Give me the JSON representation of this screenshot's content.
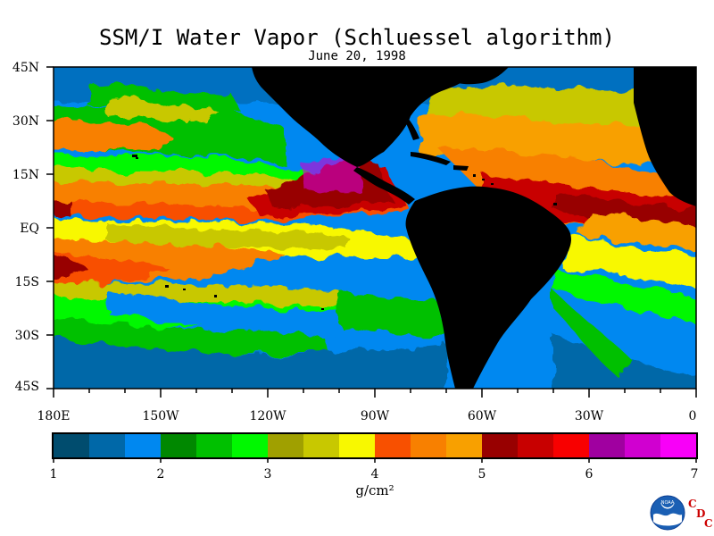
{
  "title": "SSM/I Water Vapor (Schluessel algorithm)",
  "subtitle": "June 20, 1998",
  "lat_labels": [
    "45N",
    "30N",
    "15N",
    "EQ",
    "15S",
    "30S",
    "45S"
  ],
  "lon_labels": [
    "180E",
    "150W",
    "120W",
    "90W",
    "60W",
    "30W",
    "0"
  ],
  "colorbar": {
    "ticks": [
      "1",
      "2",
      "3",
      "4",
      "5",
      "6",
      "7"
    ],
    "units": "g/cm²",
    "colors": [
      "#004c6e",
      "#0068a8",
      "#0088f0",
      "#008800",
      "#00c000",
      "#00f800",
      "#a0a000",
      "#c8c800",
      "#f8f800",
      "#f85000",
      "#f88000",
      "#f8a000",
      "#980000",
      "#c80000",
      "#f80000",
      "#a000a0",
      "#d000d0",
      "#f800f8"
    ]
  },
  "logo": {
    "name": "NOAA",
    "org": "CDC",
    "org_letters": [
      "C",
      "D",
      "C"
    ]
  }
}
